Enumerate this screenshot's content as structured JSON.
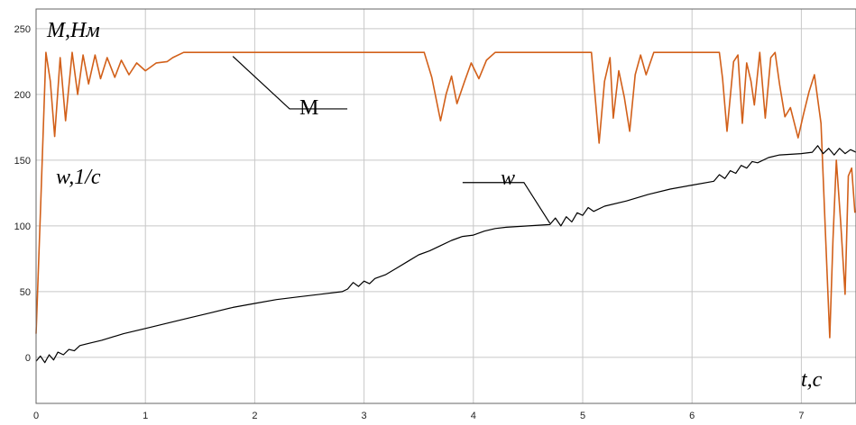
{
  "chart_data": {
    "type": "line",
    "title": "",
    "xlabel": "",
    "ylabel": "",
    "xlim": [
      0,
      7.5
    ],
    "ylim": [
      -35,
      265
    ],
    "grid": true,
    "x_ticks": [
      "0",
      "1",
      "2",
      "3",
      "4",
      "5",
      "6",
      "7"
    ],
    "y_ticks": [
      "0",
      "50",
      "100",
      "150",
      "200",
      "250"
    ],
    "annotations": {
      "torque_axis_label": "M,Нм",
      "speed_axis_label": "w,1/c",
      "time_axis_label": "t,c"
    },
    "series": [
      {
        "name": "M",
        "color": "#d2601a",
        "points": [
          [
            0.0,
            18
          ],
          [
            0.04,
            110
          ],
          [
            0.09,
            232
          ],
          [
            0.13,
            210
          ],
          [
            0.17,
            168
          ],
          [
            0.22,
            228
          ],
          [
            0.27,
            180
          ],
          [
            0.33,
            232
          ],
          [
            0.38,
            200
          ],
          [
            0.43,
            230
          ],
          [
            0.48,
            208
          ],
          [
            0.54,
            230
          ],
          [
            0.59,
            212
          ],
          [
            0.65,
            228
          ],
          [
            0.72,
            213
          ],
          [
            0.78,
            226
          ],
          [
            0.85,
            215
          ],
          [
            0.92,
            224
          ],
          [
            1.0,
            218
          ],
          [
            1.1,
            224
          ],
          [
            1.2,
            225
          ],
          [
            1.25,
            228
          ],
          [
            1.35,
            232
          ],
          [
            3.55,
            232
          ],
          [
            3.62,
            213
          ],
          [
            3.7,
            180
          ],
          [
            3.75,
            200
          ],
          [
            3.8,
            214
          ],
          [
            3.85,
            193
          ],
          [
            3.92,
            210
          ],
          [
            3.98,
            224
          ],
          [
            4.05,
            212
          ],
          [
            4.12,
            226
          ],
          [
            4.2,
            232
          ],
          [
            5.08,
            232
          ],
          [
            5.1,
            212
          ],
          [
            5.15,
            163
          ],
          [
            5.2,
            210
          ],
          [
            5.25,
            228
          ],
          [
            5.28,
            182
          ],
          [
            5.33,
            218
          ],
          [
            5.38,
            198
          ],
          [
            5.43,
            172
          ],
          [
            5.48,
            215
          ],
          [
            5.53,
            230
          ],
          [
            5.58,
            215
          ],
          [
            5.65,
            232
          ],
          [
            6.25,
            232
          ],
          [
            6.28,
            212
          ],
          [
            6.32,
            172
          ],
          [
            6.38,
            225
          ],
          [
            6.42,
            230
          ],
          [
            6.46,
            178
          ],
          [
            6.5,
            224
          ],
          [
            6.54,
            210
          ],
          [
            6.57,
            192
          ],
          [
            6.62,
            232
          ],
          [
            6.67,
            182
          ],
          [
            6.72,
            228
          ],
          [
            6.76,
            232
          ],
          [
            6.8,
            208
          ],
          [
            6.85,
            183
          ],
          [
            6.9,
            190
          ],
          [
            6.97,
            167
          ],
          [
            7.02,
            185
          ],
          [
            7.07,
            202
          ],
          [
            7.12,
            215
          ],
          [
            7.18,
            178
          ],
          [
            7.22,
            95
          ],
          [
            7.26,
            15
          ],
          [
            7.29,
            90
          ],
          [
            7.32,
            150
          ],
          [
            7.36,
            103
          ],
          [
            7.4,
            48
          ],
          [
            7.43,
            138
          ],
          [
            7.46,
            144
          ],
          [
            7.49,
            110
          ]
        ]
      },
      {
        "name": "w",
        "color": "#000000",
        "points": [
          [
            0.0,
            -3
          ],
          [
            0.04,
            1
          ],
          [
            0.08,
            -4
          ],
          [
            0.12,
            2
          ],
          [
            0.16,
            -2
          ],
          [
            0.2,
            4
          ],
          [
            0.25,
            2
          ],
          [
            0.3,
            6
          ],
          [
            0.35,
            5
          ],
          [
            0.4,
            9
          ],
          [
            0.5,
            11
          ],
          [
            0.6,
            13
          ],
          [
            0.8,
            18
          ],
          [
            1.0,
            22
          ],
          [
            1.2,
            26
          ],
          [
            1.4,
            30
          ],
          [
            1.6,
            34
          ],
          [
            1.8,
            38
          ],
          [
            2.0,
            41
          ],
          [
            2.2,
            44
          ],
          [
            2.4,
            46
          ],
          [
            2.6,
            48
          ],
          [
            2.8,
            50
          ],
          [
            2.85,
            52
          ],
          [
            2.9,
            57
          ],
          [
            2.95,
            54
          ],
          [
            3.0,
            58
          ],
          [
            3.05,
            56
          ],
          [
            3.1,
            60
          ],
          [
            3.2,
            63
          ],
          [
            3.3,
            68
          ],
          [
            3.4,
            73
          ],
          [
            3.5,
            78
          ],
          [
            3.6,
            81
          ],
          [
            3.7,
            85
          ],
          [
            3.8,
            89
          ],
          [
            3.9,
            92
          ],
          [
            4.0,
            93
          ],
          [
            4.1,
            96
          ],
          [
            4.2,
            98
          ],
          [
            4.3,
            99
          ],
          [
            4.5,
            100
          ],
          [
            4.7,
            101
          ],
          [
            4.75,
            106
          ],
          [
            4.8,
            100
          ],
          [
            4.85,
            107
          ],
          [
            4.9,
            103
          ],
          [
            4.95,
            110
          ],
          [
            5.0,
            108
          ],
          [
            5.05,
            114
          ],
          [
            5.1,
            111
          ],
          [
            5.2,
            115
          ],
          [
            5.4,
            119
          ],
          [
            5.6,
            124
          ],
          [
            5.8,
            128
          ],
          [
            6.0,
            131
          ],
          [
            6.2,
            134
          ],
          [
            6.25,
            139
          ],
          [
            6.3,
            136
          ],
          [
            6.35,
            142
          ],
          [
            6.4,
            140
          ],
          [
            6.45,
            146
          ],
          [
            6.5,
            144
          ],
          [
            6.55,
            149
          ],
          [
            6.6,
            148
          ],
          [
            6.7,
            152
          ],
          [
            6.8,
            154
          ],
          [
            7.0,
            155
          ],
          [
            7.1,
            156
          ],
          [
            7.15,
            161
          ],
          [
            7.2,
            155
          ],
          [
            7.25,
            159
          ],
          [
            7.3,
            154
          ],
          [
            7.35,
            159
          ],
          [
            7.4,
            155
          ],
          [
            7.45,
            158
          ],
          [
            7.5,
            156
          ]
        ]
      }
    ],
    "series_labels": [
      {
        "text": "M",
        "anchor": [
          1.8,
          229
        ],
        "label_at": [
          2.55,
          189
        ]
      },
      {
        "text": "w",
        "anchor": [
          4.7,
          102
        ],
        "label_at": [
          4.05,
          133
        ]
      }
    ]
  }
}
